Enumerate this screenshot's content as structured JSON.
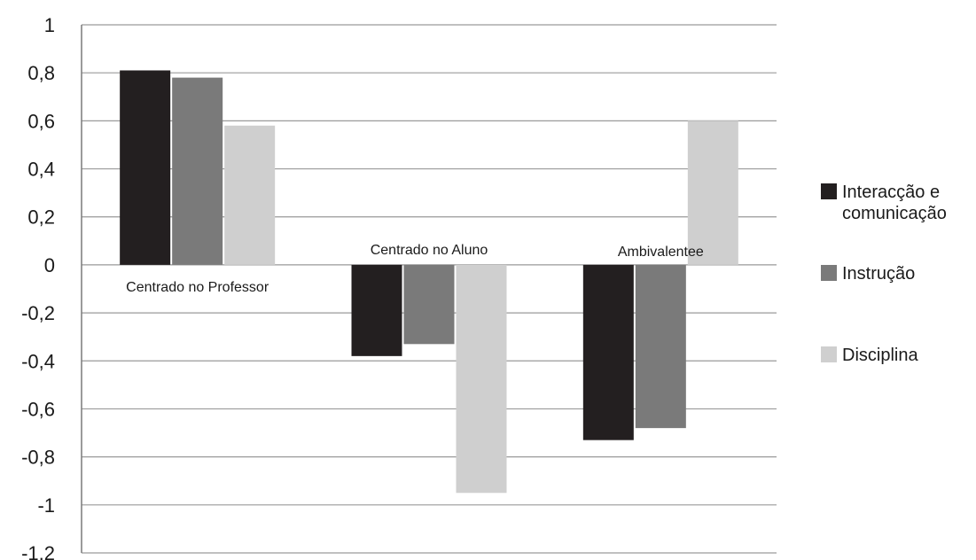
{
  "chart_data": {
    "type": "bar",
    "categories": [
      "Centrado no Professor",
      "Centrado no Aluno",
      "Ambivalentee"
    ],
    "series": [
      {
        "name": "Interacção e comunicação",
        "legend_lines": [
          "Interacção e",
          "comunicação"
        ],
        "values": [
          0.81,
          -0.38,
          -0.73
        ],
        "color": "#231f20"
      },
      {
        "name": "Instrução",
        "legend_lines": [
          "Instrução"
        ],
        "values": [
          0.78,
          -0.33,
          -0.68
        ],
        "color": "#7a7a7a"
      },
      {
        "name": "Disciplina",
        "legend_lines": [
          "Disciplina"
        ],
        "values": [
          0.58,
          -0.95,
          0.6
        ],
        "color": "#cfcfcf"
      }
    ],
    "yticks": [
      1,
      0.8,
      0.6,
      0.4,
      0.2,
      0,
      -0.2,
      -0.4,
      -0.6,
      -0.8,
      -1,
      -1.2
    ],
    "ytick_labels": [
      "1",
      "0,8",
      "0,6",
      "0,4",
      "0,2",
      "0",
      "-0,2",
      "-0,4",
      "-0,6",
      "-0,8",
      "-1",
      "-1,2"
    ],
    "ylim": [
      -1.2,
      1
    ],
    "grid": true,
    "legend_position": "right",
    "title": "",
    "xlabel": "",
    "ylabel": ""
  }
}
